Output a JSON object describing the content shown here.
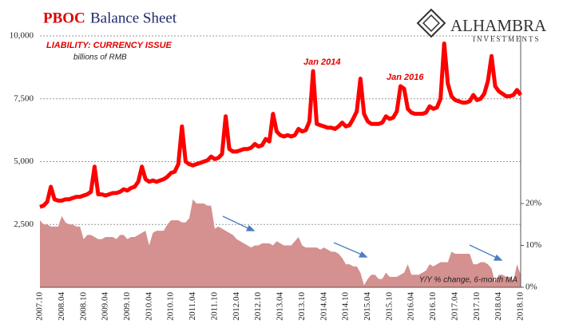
{
  "chart_data": {
    "type": "line",
    "title_parts": [
      "PBOC",
      "Balance Sheet"
    ],
    "logo": {
      "name": "ALHAMBRA",
      "tagline": "INVESTMENTS"
    },
    "units_note": "billions of RMB",
    "annotations": [
      "Jan 2014",
      "Jan 2016"
    ],
    "categories": [
      "2007.10",
      null,
      null,
      null,
      null,
      null,
      "2008.04",
      null,
      null,
      null,
      null,
      null,
      "2008.10",
      null,
      null,
      null,
      null,
      null,
      "2009.04",
      null,
      null,
      null,
      null,
      null,
      "2009.10",
      null,
      null,
      null,
      null,
      null,
      "2010.04",
      null,
      null,
      null,
      null,
      null,
      "2010.10",
      null,
      null,
      null,
      null,
      null,
      "2011.04",
      null,
      null,
      null,
      null,
      null,
      "2011.10",
      null,
      null,
      null,
      null,
      null,
      "2012.04",
      null,
      null,
      null,
      null,
      null,
      "2012.10",
      null,
      null,
      null,
      null,
      null,
      "2013.04",
      null,
      null,
      null,
      null,
      null,
      "2013.10",
      null,
      null,
      null,
      null,
      null,
      "2014.04",
      null,
      null,
      null,
      null,
      null,
      "2014.10",
      null,
      null,
      null,
      null,
      null,
      "2015.04",
      null,
      null,
      null,
      null,
      null,
      "2015.10",
      null,
      null,
      null,
      null,
      null,
      "2016.04",
      null,
      null,
      null,
      null,
      null,
      "2016.10",
      null,
      null,
      null,
      null,
      null,
      "2017.04",
      null,
      null,
      null,
      null,
      null,
      "2017.10",
      null,
      null,
      null,
      null,
      null,
      "2018.04",
      null,
      null,
      null,
      null,
      null,
      "2018.10"
    ],
    "series": [
      {
        "name": "Y/Y % change, 6-month MA",
        "color": "#d4918f",
        "kind": "area",
        "axis": "y2",
        "values": [
          16,
          15,
          15,
          14.5,
          14.5,
          14.5,
          17,
          15.5,
          15,
          15,
          14.5,
          14.5,
          11.5,
          12.5,
          12.5,
          12,
          11.5,
          11.5,
          12,
          12,
          12,
          11.5,
          12.5,
          12.5,
          11.5,
          12,
          12,
          12.5,
          13,
          13.5,
          10,
          13,
          13.5,
          13.5,
          13.5,
          15,
          16,
          16,
          16,
          15.5,
          15.5,
          16.5,
          21,
          20,
          20,
          20,
          19.5,
          19.5,
          14,
          14.5,
          14,
          13.5,
          13,
          12.5,
          11.5,
          11,
          10.5,
          10,
          9.5,
          10,
          10,
          10.5,
          10.5,
          10.5,
          10,
          11,
          10.5,
          10,
          10,
          10,
          11,
          12,
          10,
          9.5,
          9.5,
          9.5,
          9.5,
          9,
          9.5,
          9,
          8.5,
          8.5,
          8,
          7,
          5.5,
          5.5,
          5,
          5,
          3.5,
          0.5,
          2,
          3,
          3,
          2,
          2,
          3.5,
          2.5,
          2.5,
          2.5,
          3,
          3.5,
          5.5,
          3,
          3,
          3,
          3.5,
          4,
          5.5,
          5,
          5.5,
          6,
          6,
          6,
          8.5,
          8,
          8,
          8,
          8,
          8,
          5.5,
          5.5,
          6,
          6,
          5.5,
          4.5,
          1,
          3,
          3,
          2.5,
          2.5,
          1.5,
          5.5,
          3
        ]
      },
      {
        "name": "LIABILITY: CURRENCY ISSUE",
        "color": "#ff0000",
        "kind": "line",
        "values": [
          3200,
          3250,
          3400,
          4000,
          3500,
          3450,
          3450,
          3500,
          3500,
          3550,
          3600,
          3600,
          3650,
          3700,
          3800,
          4800,
          3700,
          3700,
          3650,
          3700,
          3750,
          3750,
          3800,
          3900,
          3850,
          3950,
          4000,
          4200,
          4800,
          4300,
          4200,
          4250,
          4200,
          4250,
          4300,
          4400,
          4550,
          4600,
          4900,
          6400,
          5000,
          4900,
          4850,
          4900,
          4950,
          5000,
          5050,
          5200,
          5100,
          5150,
          5300,
          6800,
          5500,
          5400,
          5400,
          5450,
          5500,
          5500,
          5550,
          5700,
          5600,
          5650,
          5900,
          5800,
          6900,
          6200,
          6050,
          6000,
          6050,
          6000,
          6050,
          6300,
          6200,
          6250,
          6600,
          8600,
          6500,
          6450,
          6400,
          6350,
          6350,
          6300,
          6400,
          6550,
          6400,
          6450,
          6700,
          7000,
          8300,
          6900,
          6600,
          6500,
          6500,
          6500,
          6550,
          6800,
          6700,
          6750,
          7000,
          8000,
          7900,
          7100,
          6950,
          6900,
          6900,
          6900,
          6950,
          7200,
          7100,
          7150,
          7500,
          9700,
          8100,
          7600,
          7450,
          7400,
          7350,
          7350,
          7400,
          7650,
          7450,
          7500,
          7700,
          8200,
          9200,
          8000,
          7800,
          7700,
          7600,
          7600,
          7650,
          7850,
          7650
        ]
      }
    ],
    "ylim": [
      0,
      10000
    ],
    "yticks": [
      {
        "value": 2500,
        "label": "2,500"
      },
      {
        "value": 5000,
        "label": "5,000"
      },
      {
        "value": 7500,
        "label": "7,500"
      },
      {
        "value": 10000,
        "label": "10,000"
      }
    ],
    "y2lim": [
      0,
      60
    ],
    "y2ticks": [
      {
        "value": 0,
        "label": "0%"
      },
      {
        "value": 10,
        "label": "10%"
      },
      {
        "value": 20,
        "label": "20%"
      }
    ],
    "grid": true
  }
}
